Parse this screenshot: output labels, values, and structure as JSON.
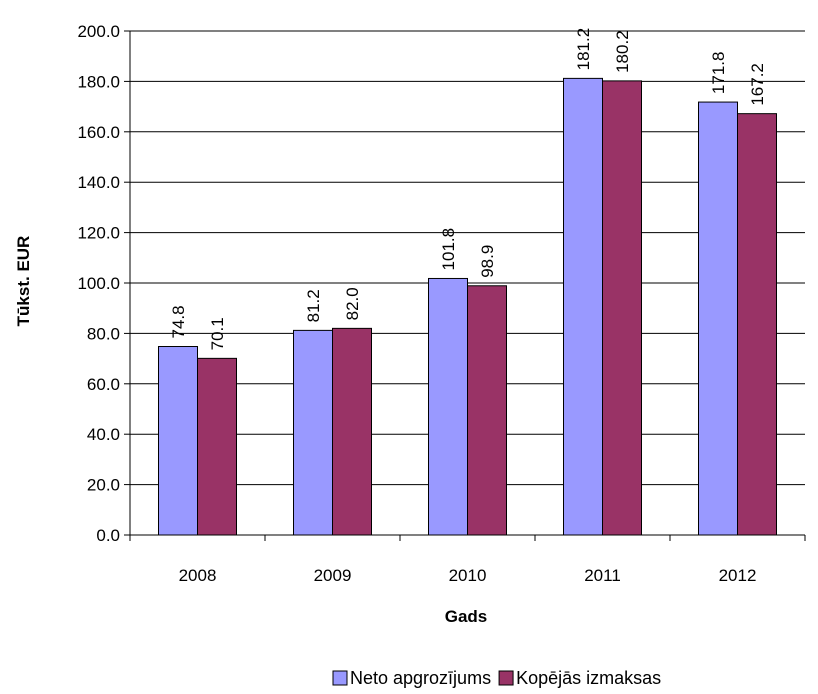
{
  "chart_data": {
    "type": "bar",
    "title": "",
    "xlabel": "Gads",
    "ylabel": "Tūkst. EUR",
    "categories": [
      "2008",
      "2009",
      "2010",
      "2011",
      "2012"
    ],
    "series": [
      {
        "name": "Neto apgrozījums",
        "color": "#9999ff",
        "values": [
          74.8,
          81.2,
          101.8,
          181.2,
          171.8
        ]
      },
      {
        "name": "Kopējās izmaksas",
        "color": "#993366",
        "values": [
          70.1,
          82.0,
          98.9,
          180.2,
          167.2
        ]
      }
    ],
    "data_labels": [
      [
        "74.8",
        "81.2",
        "101.8",
        "181.2",
        "171.8"
      ],
      [
        "70.1",
        "82.0",
        "98.9",
        "180.2",
        "167.2"
      ]
    ],
    "y_ticks": [
      "0.0",
      "20.0",
      "40.0",
      "60.0",
      "80.0",
      "100.0",
      "120.0",
      "140.0",
      "160.0",
      "180.0",
      "200.0"
    ],
    "ylim": [
      0,
      200
    ],
    "grid": true,
    "legend_position": "bottom"
  }
}
